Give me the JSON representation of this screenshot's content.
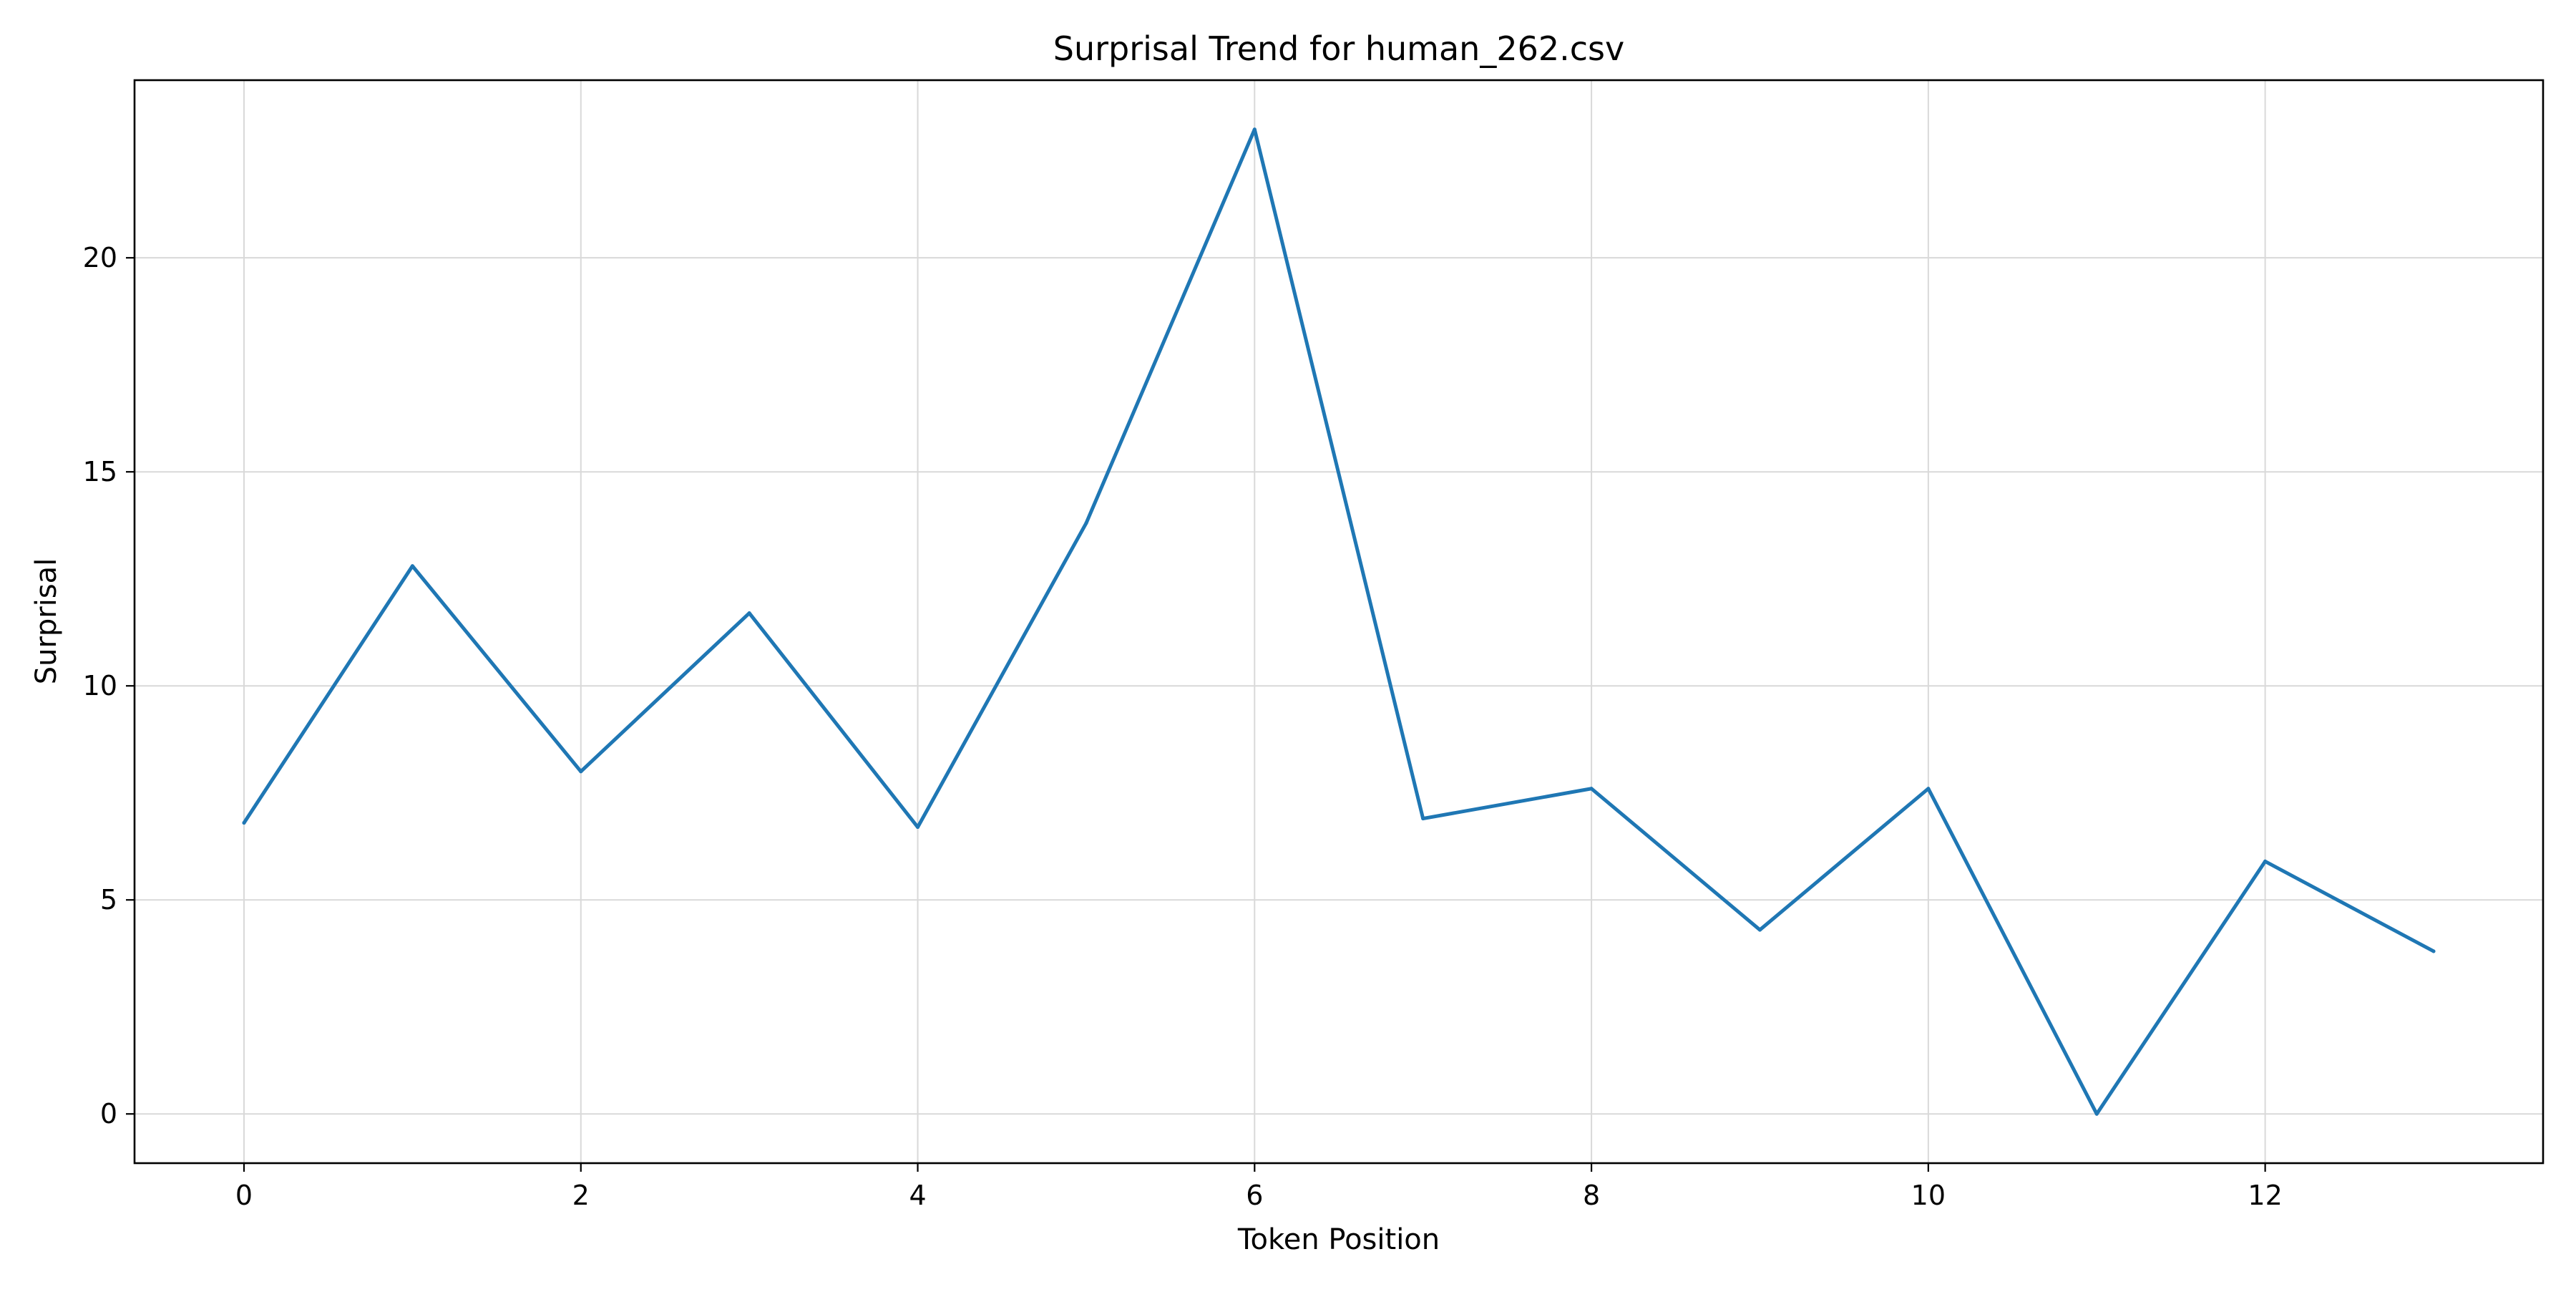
{
  "chart_data": {
    "type": "line",
    "title": "Surprisal Trend for human_262.csv",
    "xlabel": "Token Position",
    "ylabel": "Surprisal",
    "x": [
      0,
      1,
      2,
      3,
      4,
      5,
      6,
      7,
      8,
      9,
      10,
      11,
      12,
      13
    ],
    "series": [
      {
        "values": [
          6.8,
          12.8,
          8.0,
          11.7,
          6.7,
          13.8,
          23.0,
          6.9,
          7.6,
          4.3,
          7.6,
          0.0,
          5.9,
          3.8
        ],
        "color": "#1f77b4"
      }
    ],
    "xlim": [
      -0.65,
      13.65
    ],
    "ylim": [
      -1.15,
      24.15
    ],
    "xticks": [
      0,
      2,
      4,
      6,
      8,
      10,
      12
    ],
    "yticks": [
      0,
      5,
      10,
      15,
      20
    ],
    "grid": true,
    "legend": "none"
  }
}
